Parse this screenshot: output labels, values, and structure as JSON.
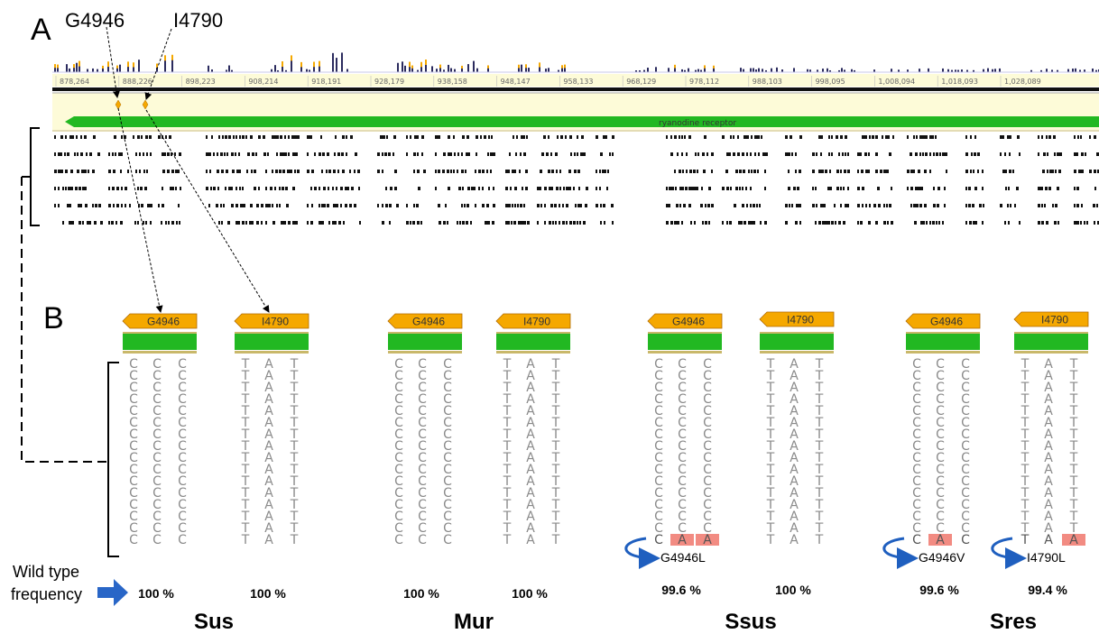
{
  "panel_a": {
    "letter": "A",
    "callouts": [
      "G4946",
      "I4790"
    ],
    "ruler_ticks": [
      "878,264",
      "888,226",
      "898,223",
      "908,214",
      "918,191",
      "928,179",
      "938,158",
      "948,147",
      "958,133",
      "968,129",
      "978,112",
      "988,103",
      "998,095",
      "1,008,094",
      "1,018,093",
      "1,028,089"
    ],
    "gene_name": "ryanodine receptor"
  },
  "panel_b": {
    "letter": "B",
    "wild_type_label_line1": "Wild type",
    "wild_type_label_line2": "frequency",
    "groups": [
      {
        "name": "Sus",
        "sites": [
          {
            "tag": "G4946",
            "bases": [
              "C",
              "C",
              "C"
            ],
            "rows": 16,
            "mutant": null,
            "mutant_label": "",
            "frequency": "100 %"
          },
          {
            "tag": "I4790",
            "bases": [
              "T",
              "A",
              "T"
            ],
            "rows": 16,
            "mutant": null,
            "mutant_label": "",
            "frequency": "100 %"
          }
        ]
      },
      {
        "name": "Mur",
        "sites": [
          {
            "tag": "G4946",
            "bases": [
              "C",
              "C",
              "C"
            ],
            "rows": 16,
            "mutant": null,
            "mutant_label": "",
            "frequency": "100 %"
          },
          {
            "tag": "I4790",
            "bases": [
              "T",
              "A",
              "T"
            ],
            "rows": 16,
            "mutant": null,
            "mutant_label": "",
            "frequency": "100 %"
          }
        ]
      },
      {
        "name": "Ssus",
        "sites": [
          {
            "tag": "G4946",
            "bases": [
              "C",
              "C",
              "C"
            ],
            "rows": 16,
            "mutant": [
              "C",
              "A",
              "A"
            ],
            "mutant_label": "G4946L",
            "frequency": "99.6 %"
          },
          {
            "tag": "I4790",
            "bases": [
              "T",
              "A",
              "T"
            ],
            "rows": 16,
            "mutant": null,
            "mutant_label": "",
            "frequency": "100 %"
          }
        ]
      },
      {
        "name": "Sres",
        "sites": [
          {
            "tag": "G4946",
            "bases": [
              "C",
              "C",
              "C"
            ],
            "rows": 16,
            "mutant": [
              "C",
              "A",
              "C"
            ],
            "mutant_label": "G4946V",
            "frequency": "99.6 %"
          },
          {
            "tag": "I4790",
            "bases": [
              "T",
              "A",
              "T"
            ],
            "rows": 16,
            "mutant": [
              "T",
              "A",
              "A"
            ],
            "mutant_label": "I4790L",
            "frequency": "99.4 %"
          }
        ]
      }
    ]
  },
  "colors": {
    "variant_tag": "#f5a800",
    "gene_bar": "#22b822",
    "mutation_highlight": "#f28b82",
    "arrow_blue": "#1f5fbf",
    "track_bg": "#fdfbd8"
  }
}
